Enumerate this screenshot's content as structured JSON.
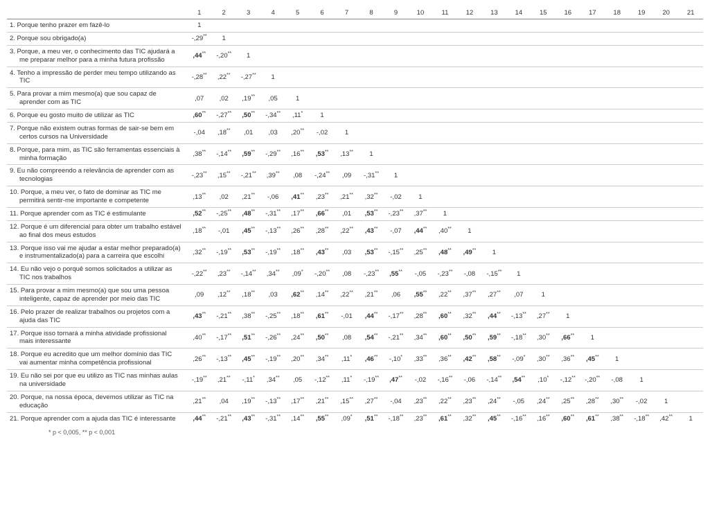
{
  "columns": [
    "1",
    "2",
    "3",
    "4",
    "5",
    "6",
    "7",
    "8",
    "9",
    "10",
    "11",
    "12",
    "13",
    "14",
    "15",
    "16",
    "17",
    "18",
    "19",
    "20",
    "21"
  ],
  "footnote": "* p < 0,005, ** p < 0,001",
  "rows": [
    {
      "label": "1. Porque tenho prazer em fazê-lo",
      "cells": [
        {
          "v": "1"
        }
      ]
    },
    {
      "label": "2. Porque sou obrigado(a)",
      "cells": [
        {
          "v": "-,29",
          "s": "**"
        },
        {
          "v": "1"
        }
      ]
    },
    {
      "label": "3. Porque, a meu ver, o conhecimento das TIC ajudará a me preparar melhor para a minha futura profissão",
      "indent": true,
      "cells": [
        {
          "v": ",44",
          "s": "**",
          "b": true
        },
        {
          "v": "-,20",
          "s": "**"
        },
        {
          "v": "1"
        }
      ]
    },
    {
      "label": "4. Tenho a impressão de perder meu tempo utilizando as TIC",
      "indent": true,
      "cells": [
        {
          "v": "-,28",
          "s": "**"
        },
        {
          "v": ",22",
          "s": "**"
        },
        {
          "v": "-,27",
          "s": "**"
        },
        {
          "v": "1"
        }
      ]
    },
    {
      "label": "5. Para provar a mim mesmo(a) que sou capaz de aprender com as TIC",
      "indent": true,
      "cells": [
        {
          "v": ",07"
        },
        {
          "v": ",02"
        },
        {
          "v": ",19",
          "s": "**"
        },
        {
          "v": ",05"
        },
        {
          "v": "1"
        }
      ]
    },
    {
      "label": "6. Porque eu gosto muito de utilizar as TIC",
      "cells": [
        {
          "v": ",60",
          "s": "**",
          "b": true
        },
        {
          "v": "-,27",
          "s": "**"
        },
        {
          "v": ",50",
          "s": "**",
          "b": true
        },
        {
          "v": "-,34",
          "s": "**"
        },
        {
          "v": ",11",
          "s": "*"
        },
        {
          "v": "1"
        }
      ]
    },
    {
      "label": "7. Porque não existem outras formas de sair-se bem em certos cursos na Universidade",
      "indent": true,
      "cells": [
        {
          "v": "-,04"
        },
        {
          "v": ",18",
          "s": "**"
        },
        {
          "v": ",01"
        },
        {
          "v": ",03"
        },
        {
          "v": ",20",
          "s": "**"
        },
        {
          "v": "-,02"
        },
        {
          "v": "1"
        }
      ]
    },
    {
      "label": "8. Porque, para mim, as TIC são ferramentas essenciais à minha formação",
      "indent": true,
      "cells": [
        {
          "v": ",38",
          "s": "**"
        },
        {
          "v": "-,14",
          "s": "**"
        },
        {
          "v": ",59",
          "s": "**",
          "b": true
        },
        {
          "v": "-,29",
          "s": "**"
        },
        {
          "v": ",16",
          "s": "**"
        },
        {
          "v": ",53",
          "s": "**",
          "b": true
        },
        {
          "v": ",13",
          "s": "**"
        },
        {
          "v": "1"
        }
      ]
    },
    {
      "label": "9. Eu não compreendo a relevância de aprender com as tecnologias",
      "indent": true,
      "cells": [
        {
          "v": "-,23",
          "s": "**"
        },
        {
          "v": ",15",
          "s": "**"
        },
        {
          "v": "-,21",
          "s": "**"
        },
        {
          "v": ",39",
          "s": "**"
        },
        {
          "v": ",08"
        },
        {
          "v": "-,24",
          "s": "**"
        },
        {
          "v": ",09"
        },
        {
          "v": "-,31",
          "s": "**"
        },
        {
          "v": "1"
        }
      ]
    },
    {
      "label": "10. Porque, a meu ver, o fato de dominar as TIC me permitirá sentir-me importante e competente",
      "indent": true,
      "cells": [
        {
          "v": ",13",
          "s": "**"
        },
        {
          "v": ",02"
        },
        {
          "v": ",21",
          "s": "**"
        },
        {
          "v": "-,06"
        },
        {
          "v": ",41",
          "s": "**",
          "b": true
        },
        {
          "v": ",23",
          "s": "**"
        },
        {
          "v": ",21",
          "s": "**"
        },
        {
          "v": ",32",
          "s": "**"
        },
        {
          "v": "-,02"
        },
        {
          "v": "1"
        }
      ]
    },
    {
      "label": "11. Porque aprender com as TIC é estimulante",
      "cells": [
        {
          "v": ",52",
          "s": "**",
          "b": true
        },
        {
          "v": "-,25",
          "s": "**"
        },
        {
          "v": ",48",
          "s": "**",
          "b": true
        },
        {
          "v": "-,31",
          "s": "**"
        },
        {
          "v": ",17",
          "s": "**"
        },
        {
          "v": ",66",
          "s": "**",
          "b": true
        },
        {
          "v": ",01"
        },
        {
          "v": ",53",
          "s": "**",
          "b": true
        },
        {
          "v": "-,23",
          "s": "**"
        },
        {
          "v": ",37",
          "s": "**"
        },
        {
          "v": "1"
        }
      ]
    },
    {
      "label": "12. Porque é um diferencial para obter um trabalho estável ao final dos meus estudos",
      "indent": true,
      "cells": [
        {
          "v": ",18",
          "s": "**"
        },
        {
          "v": "-,01"
        },
        {
          "v": ",45",
          "s": "**",
          "b": true
        },
        {
          "v": "-,13",
          "s": "**"
        },
        {
          "v": ",26",
          "s": "**"
        },
        {
          "v": ",28",
          "s": "**"
        },
        {
          "v": ",22",
          "s": "**"
        },
        {
          "v": ",43",
          "s": "**",
          "b": true
        },
        {
          "v": "-,07"
        },
        {
          "v": ",44",
          "s": "**",
          "b": true
        },
        {
          "v": ",40",
          "s": "**"
        },
        {
          "v": "1"
        }
      ]
    },
    {
      "label": "13. Porque isso vai me ajudar a estar melhor preparado(a) e instrumentalizado(a) para a carreira que escolhi",
      "indent": true,
      "cells": [
        {
          "v": ",32",
          "s": "**"
        },
        {
          "v": "-,19",
          "s": "**"
        },
        {
          "v": ",53",
          "s": "**",
          "b": true
        },
        {
          "v": "-,19",
          "s": "**"
        },
        {
          "v": ",18",
          "s": "**"
        },
        {
          "v": ",43",
          "s": "**",
          "b": true
        },
        {
          "v": ",03"
        },
        {
          "v": ",53",
          "s": "**",
          "b": true
        },
        {
          "v": "-,15",
          "s": "**"
        },
        {
          "v": ",25",
          "s": "**"
        },
        {
          "v": ",48",
          "s": "**",
          "b": true
        },
        {
          "v": ",49",
          "s": "**",
          "b": true
        },
        {
          "v": "1"
        }
      ]
    },
    {
      "label": "14. Eu não vejo o porquê somos solicitados a utilizar as TIC nos trabalhos",
      "indent": true,
      "cells": [
        {
          "v": "-,22",
          "s": "**"
        },
        {
          "v": ",23",
          "s": "**"
        },
        {
          "v": "-,14",
          "s": "**"
        },
        {
          "v": ",34",
          "s": "**"
        },
        {
          "v": ",09",
          "s": "*"
        },
        {
          "v": "-,20",
          "s": "**"
        },
        {
          "v": ",08"
        },
        {
          "v": "-,23",
          "s": "**"
        },
        {
          "v": ",55",
          "s": "**",
          "b": true
        },
        {
          "v": "-,05"
        },
        {
          "v": "-,23",
          "s": "**"
        },
        {
          "v": "-,08"
        },
        {
          "v": "-,15",
          "s": "**"
        },
        {
          "v": "1"
        }
      ]
    },
    {
      "label": "15. Para provar a mim mesmo(a) que sou uma pessoa inteligente, capaz de aprender por meio das TIC",
      "indent": true,
      "cells": [
        {
          "v": ",09"
        },
        {
          "v": ",12",
          "s": "**"
        },
        {
          "v": ",18",
          "s": "**"
        },
        {
          "v": ",03"
        },
        {
          "v": ",62",
          "s": "**",
          "b": true
        },
        {
          "v": ",14",
          "s": "**"
        },
        {
          "v": ",22",
          "s": "**"
        },
        {
          "v": ",21",
          "s": "**"
        },
        {
          "v": ",06"
        },
        {
          "v": ",55",
          "s": "**",
          "b": true
        },
        {
          "v": ",22",
          "s": "**"
        },
        {
          "v": ",37",
          "s": "**"
        },
        {
          "v": ",27",
          "s": "**"
        },
        {
          "v": ",07"
        },
        {
          "v": "1"
        }
      ]
    },
    {
      "label": "16. Pelo prazer de realizar trabalhos ou projetos com a ajuda das TIC",
      "indent": true,
      "cells": [
        {
          "v": ",43",
          "s": "**",
          "b": true
        },
        {
          "v": "-,21",
          "s": "**"
        },
        {
          "v": ",38",
          "s": "**"
        },
        {
          "v": "-,25",
          "s": "**"
        },
        {
          "v": ",18",
          "s": "**"
        },
        {
          "v": ",61",
          "s": "**",
          "b": true
        },
        {
          "v": "-,01"
        },
        {
          "v": ",44",
          "s": "**",
          "b": true
        },
        {
          "v": "-,17",
          "s": "**"
        },
        {
          "v": ",28",
          "s": "**"
        },
        {
          "v": ",60",
          "s": "**",
          "b": true
        },
        {
          "v": ",32",
          "s": "**"
        },
        {
          "v": ",44",
          "s": "**",
          "b": true
        },
        {
          "v": "-,13",
          "s": "**"
        },
        {
          "v": ",27",
          "s": "**"
        },
        {
          "v": "1"
        }
      ]
    },
    {
      "label": "17. Porque isso tornará a minha atividade profissional mais interessante",
      "indent": true,
      "cells": [
        {
          "v": ",40",
          "s": "**"
        },
        {
          "v": "-,17",
          "s": "**"
        },
        {
          "v": ",51",
          "s": "**",
          "b": true
        },
        {
          "v": "-,26",
          "s": "**"
        },
        {
          "v": ",24",
          "s": "**"
        },
        {
          "v": ",50",
          "s": "**",
          "b": true
        },
        {
          "v": ",08"
        },
        {
          "v": ",54",
          "s": "**",
          "b": true
        },
        {
          "v": "-,21",
          "s": "**"
        },
        {
          "v": ",34",
          "s": "**"
        },
        {
          "v": ",60",
          "s": "**",
          "b": true
        },
        {
          "v": ",50",
          "s": "**",
          "b": true
        },
        {
          "v": ",59",
          "s": "**",
          "b": true
        },
        {
          "v": "-,18",
          "s": "**"
        },
        {
          "v": ",30",
          "s": "**"
        },
        {
          "v": ",66",
          "s": "**",
          "b": true
        },
        {
          "v": "1"
        }
      ]
    },
    {
      "label": "18. Porque eu acredito que um melhor domínio das TIC vai aumentar minha competência profissional",
      "indent": true,
      "cells": [
        {
          "v": ",26",
          "s": "**"
        },
        {
          "v": "-,13",
          "s": "**"
        },
        {
          "v": ",45",
          "s": "**",
          "b": true
        },
        {
          "v": "-,19",
          "s": "**"
        },
        {
          "v": ",20",
          "s": "**"
        },
        {
          "v": ",34",
          "s": "**"
        },
        {
          "v": ",11",
          "s": "*"
        },
        {
          "v": ",46",
          "s": "**",
          "b": true
        },
        {
          "v": "-,10",
          "s": "*"
        },
        {
          "v": ",33",
          "s": "**"
        },
        {
          "v": ",36",
          "s": "**"
        },
        {
          "v": ",42",
          "s": "**",
          "b": true
        },
        {
          "v": ",58",
          "s": "**",
          "b": true
        },
        {
          "v": "-,09",
          "s": "*"
        },
        {
          "v": ",30",
          "s": "**"
        },
        {
          "v": ",36",
          "s": "**"
        },
        {
          "v": ",45",
          "s": "**",
          "b": true
        },
        {
          "v": "1"
        }
      ]
    },
    {
      "label": "19. Eu não sei por que eu utilizo as TIC nas minhas aulas na universidade",
      "indent": true,
      "cells": [
        {
          "v": "-,19",
          "s": "**"
        },
        {
          "v": ",21",
          "s": "**"
        },
        {
          "v": "-,11",
          "s": "*"
        },
        {
          "v": ",34",
          "s": "**"
        },
        {
          "v": ",05"
        },
        {
          "v": "-,12",
          "s": "**"
        },
        {
          "v": ",11",
          "s": "*"
        },
        {
          "v": "-,19",
          "s": "**"
        },
        {
          "v": ",47",
          "s": "**",
          "b": true
        },
        {
          "v": "-,02"
        },
        {
          "v": "-,16",
          "s": "**"
        },
        {
          "v": "-,06"
        },
        {
          "v": "-,14",
          "s": "**"
        },
        {
          "v": ",54",
          "s": "**",
          "b": true
        },
        {
          "v": ",10",
          "s": "*"
        },
        {
          "v": "-,12",
          "s": "**"
        },
        {
          "v": "-,20",
          "s": "**"
        },
        {
          "v": "-,08"
        },
        {
          "v": "1"
        }
      ]
    },
    {
      "label": "20. Porque, na nossa época, devemos utilizar as TIC na educação",
      "indent": true,
      "cells": [
        {
          "v": ",21",
          "s": "**"
        },
        {
          "v": ",04"
        },
        {
          "v": ",19",
          "s": "**"
        },
        {
          "v": "-,13",
          "s": "**"
        },
        {
          "v": ",17",
          "s": "**"
        },
        {
          "v": ",21",
          "s": "**"
        },
        {
          "v": ",15",
          "s": "**"
        },
        {
          "v": ",27",
          "s": "**"
        },
        {
          "v": "-,04"
        },
        {
          "v": ",23",
          "s": "**"
        },
        {
          "v": ",22",
          "s": "**"
        },
        {
          "v": ",23",
          "s": "**"
        },
        {
          "v": ",24",
          "s": "**"
        },
        {
          "v": "-,05"
        },
        {
          "v": ",24",
          "s": "**"
        },
        {
          "v": ",25",
          "s": "**"
        },
        {
          "v": ",28",
          "s": "**"
        },
        {
          "v": ",30",
          "s": "**"
        },
        {
          "v": "-,02"
        },
        {
          "v": "1"
        }
      ]
    },
    {
      "label": "21. Porque aprender com a ajuda das TIC é interessante",
      "indent": true,
      "cells": [
        {
          "v": ",44",
          "s": "**",
          "b": true
        },
        {
          "v": "-,21",
          "s": "**"
        },
        {
          "v": ",43",
          "s": "**",
          "b": true
        },
        {
          "v": "-,31",
          "s": "**"
        },
        {
          "v": ",14",
          "s": "**"
        },
        {
          "v": ",55",
          "s": "**",
          "b": true
        },
        {
          "v": ",09",
          "s": "*"
        },
        {
          "v": ",51",
          "s": "**",
          "b": true
        },
        {
          "v": "-,18",
          "s": "**"
        },
        {
          "v": ",23",
          "s": "**"
        },
        {
          "v": ",61",
          "s": "**",
          "b": true
        },
        {
          "v": ",32",
          "s": "**"
        },
        {
          "v": ",45",
          "s": "**",
          "b": true
        },
        {
          "v": "-,16",
          "s": "**"
        },
        {
          "v": ",16",
          "s": "**"
        },
        {
          "v": ",60",
          "s": "**",
          "b": true
        },
        {
          "v": ",61",
          "s": "**",
          "b": true
        },
        {
          "v": ",38",
          "s": "**"
        },
        {
          "v": "-,18",
          "s": "**"
        },
        {
          "v": ",42",
          "s": "**"
        },
        {
          "v": "1"
        }
      ]
    }
  ]
}
